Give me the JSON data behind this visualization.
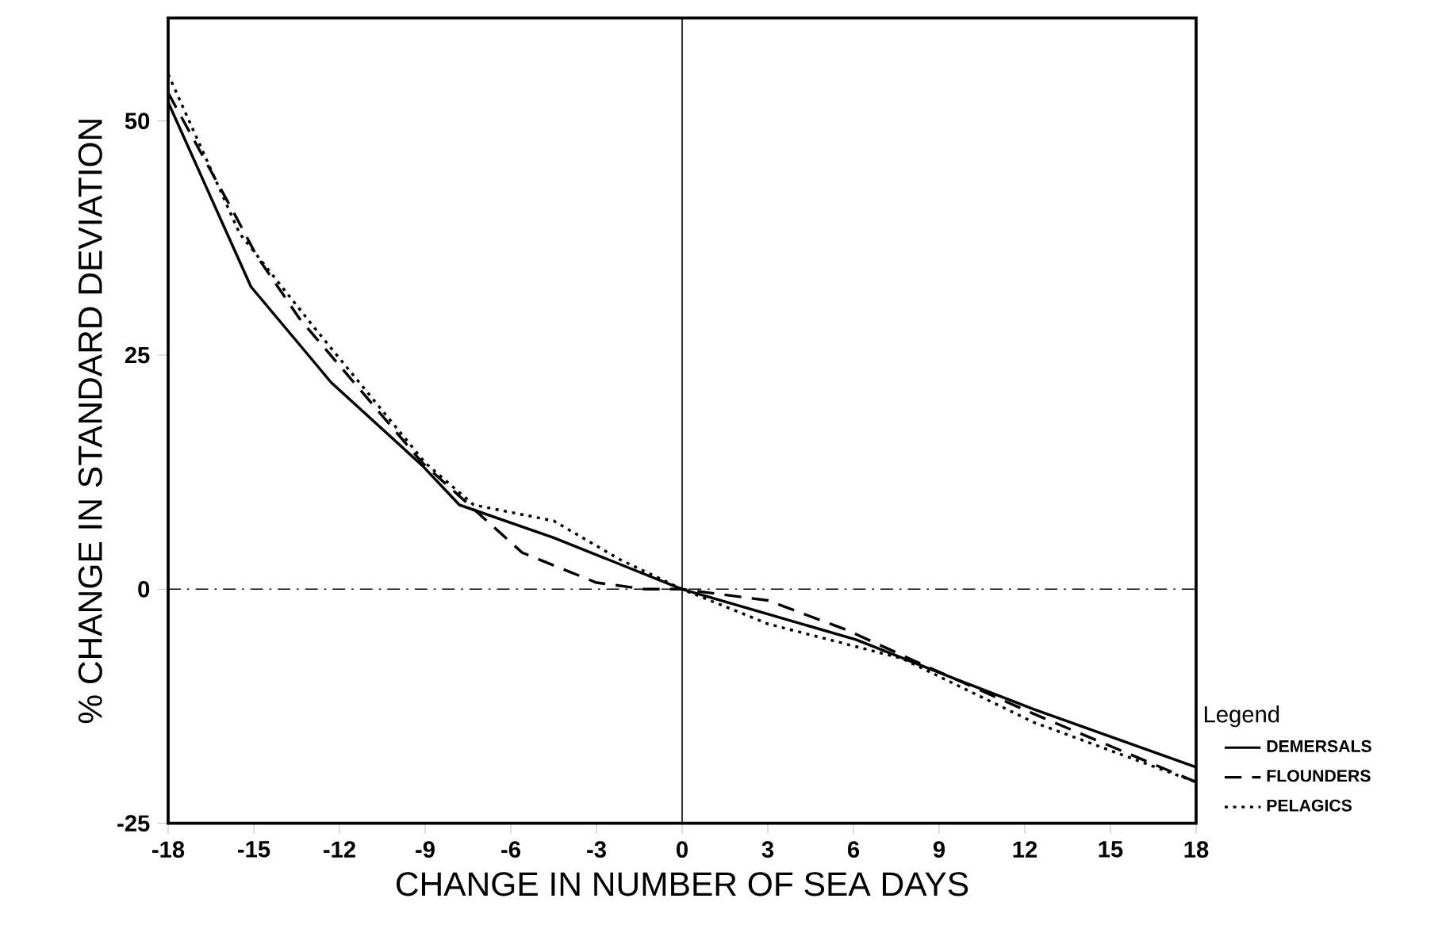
{
  "chart_data": {
    "type": "line",
    "xlabel": "CHANGE IN NUMBER OF SEA DAYS",
    "ylabel": "% CHANGE IN STANDARD DEVIATION",
    "legend_title": "Legend",
    "legend": "bottom right",
    "xlim": [
      -18,
      18
    ],
    "ylim": [
      -25,
      61
    ],
    "xticks": [
      -18,
      -15,
      -12,
      -9,
      -6,
      -3,
      0,
      3,
      6,
      9,
      12,
      15,
      18
    ],
    "yticks": [
      -25,
      0,
      25,
      50
    ],
    "grid": false,
    "ref_lines": [
      {
        "axis": "y",
        "value": 0,
        "line_style": "dashdot",
        "color": "#000000"
      },
      {
        "axis": "x",
        "value": 0,
        "line_style": "solid",
        "color": "#000000"
      }
    ],
    "series": [
      {
        "name": "DEMERSALS",
        "color": "#000000",
        "line_style": "solid",
        "x": [
          -18,
          -15.1,
          -12.9,
          -12.3,
          -9.1,
          -7.8,
          -4.5,
          0,
          6.1,
          9.5,
          12.3,
          18
        ],
        "values": [
          52,
          32.3,
          24.3,
          22.1,
          13.2,
          9,
          5.5,
          0,
          -5.4,
          -9.5,
          -12.8,
          -19
        ]
      },
      {
        "name": "FLOUNDERS",
        "color": "#000000",
        "line_style": "dashed",
        "x": [
          -18,
          -15.7,
          -14.9,
          -13.4,
          -9.1,
          -5.6,
          -3,
          -1.3,
          0,
          3,
          5.8,
          8.6,
          12.3,
          18
        ],
        "values": [
          53,
          40.2,
          35.6,
          28.9,
          13.5,
          3.9,
          0.7,
          0,
          0,
          -1.2,
          -4.4,
          -8.3,
          -13.3,
          -20.6
        ]
      },
      {
        "name": "PELAGICS",
        "color": "#000000",
        "line_style": "dotted",
        "x": [
          -18,
          -15.5,
          -12.9,
          -9,
          -7.3,
          -4.5,
          -2.2,
          0,
          3,
          7.7,
          12.3,
          18
        ],
        "values": [
          55,
          38,
          28,
          13.5,
          9,
          7.3,
          3.2,
          0,
          -3.7,
          -7.4,
          -14.2,
          -20.6
        ]
      }
    ]
  }
}
